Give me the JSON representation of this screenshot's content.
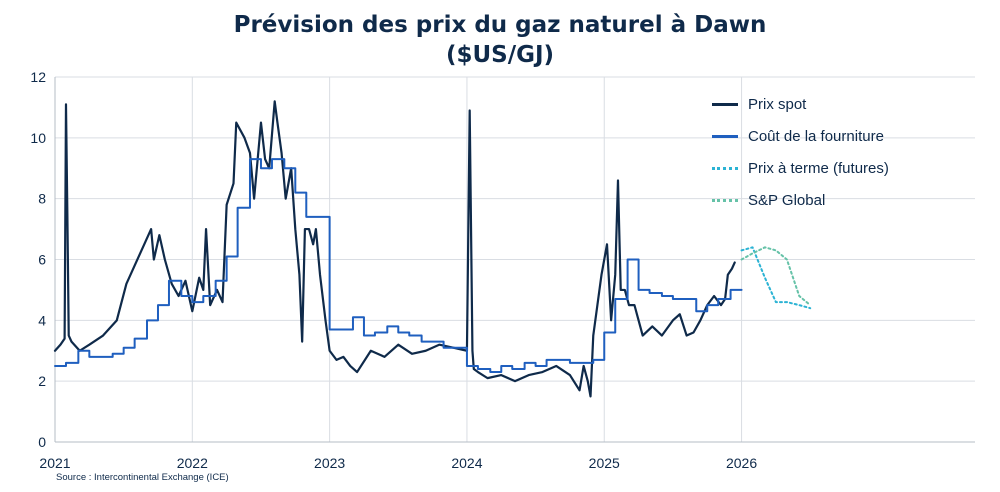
{
  "chart_data": {
    "type": "line",
    "title": "Prévision des prix du gaz naturel à Dawn",
    "subtitle": "($US/GJ)",
    "xlabel": "",
    "ylabel": "",
    "xlim": [
      2021.0,
      2027.7
    ],
    "ylim": [
      0,
      12
    ],
    "yticks": [
      "0",
      "2",
      "4",
      "6",
      "8",
      "10",
      "12"
    ],
    "xticks": [
      "2021",
      "2022",
      "2023",
      "2024",
      "2025",
      "2026"
    ],
    "grid": true,
    "legend_position": "top-right",
    "source": "Source : Intercontinental Exchange (ICE)",
    "series": [
      {
        "name": "Prix spot",
        "color": "#0f2a4a",
        "style": "solid",
        "x": [
          2021.0,
          2021.04,
          2021.07,
          2021.08,
          2021.09,
          2021.1,
          2021.12,
          2021.18,
          2021.25,
          2021.35,
          2021.45,
          2021.52,
          2021.58,
          2021.65,
          2021.7,
          2021.72,
          2021.76,
          2021.8,
          2021.85,
          2021.9,
          2021.95,
          2022.0,
          2022.05,
          2022.08,
          2022.1,
          2022.13,
          2022.18,
          2022.22,
          2022.25,
          2022.3,
          2022.32,
          2022.38,
          2022.42,
          2022.45,
          2022.5,
          2022.53,
          2022.56,
          2022.6,
          2022.62,
          2022.65,
          2022.68,
          2022.72,
          2022.75,
          2022.78,
          2022.8,
          2022.82,
          2022.85,
          2022.88,
          2022.9,
          2022.93,
          2022.97,
          2023.0,
          2023.05,
          2023.1,
          2023.15,
          2023.2,
          2023.3,
          2023.4,
          2023.5,
          2023.6,
          2023.7,
          2023.8,
          2023.9,
          2024.0,
          2024.02,
          2024.04,
          2024.05,
          2024.08,
          2024.15,
          2024.25,
          2024.35,
          2024.45,
          2024.55,
          2024.65,
          2024.75,
          2024.82,
          2024.85,
          2024.88,
          2024.9,
          2024.92,
          2024.95,
          2024.98,
          2025.02,
          2025.05,
          2025.08,
          2025.1,
          2025.12,
          2025.15,
          2025.18,
          2025.22,
          2025.28,
          2025.35,
          2025.42,
          2025.5,
          2025.55,
          2025.6,
          2025.65,
          2025.7,
          2025.75,
          2025.8,
          2025.85,
          2025.88,
          2025.9,
          2025.93,
          2025.95
        ],
        "y": [
          3.0,
          3.2,
          3.4,
          11.1,
          7.5,
          3.5,
          3.3,
          3.0,
          3.2,
          3.5,
          4.0,
          5.2,
          5.8,
          6.5,
          7.0,
          6.0,
          6.8,
          6.0,
          5.2,
          4.8,
          5.3,
          4.3,
          5.4,
          5.0,
          7.0,
          4.5,
          5.0,
          4.6,
          7.8,
          8.5,
          10.5,
          10.0,
          9.5,
          8.0,
          10.5,
          9.3,
          9.0,
          11.2,
          10.5,
          9.5,
          8.0,
          9.0,
          7.0,
          5.5,
          3.3,
          7.0,
          7.0,
          6.5,
          7.0,
          5.5,
          4.0,
          3.0,
          2.7,
          2.8,
          2.5,
          2.3,
          3.0,
          2.8,
          3.2,
          2.9,
          3.0,
          3.2,
          3.1,
          3.0,
          10.9,
          3.0,
          2.4,
          2.3,
          2.1,
          2.2,
          2.0,
          2.2,
          2.3,
          2.5,
          2.2,
          1.7,
          2.5,
          2.0,
          1.5,
          3.5,
          4.5,
          5.5,
          6.5,
          4.0,
          5.5,
          8.6,
          5.0,
          5.0,
          4.5,
          4.5,
          3.5,
          3.8,
          3.5,
          4.0,
          4.2,
          3.5,
          3.6,
          4.0,
          4.5,
          4.8,
          4.5,
          4.7,
          5.5,
          5.7,
          5.9
        ]
      },
      {
        "name": "Coût de la fourniture",
        "color": "#1f5fbf",
        "style": "step",
        "x": [
          2021.0,
          2021.08,
          2021.17,
          2021.25,
          2021.33,
          2021.42,
          2021.5,
          2021.58,
          2021.67,
          2021.75,
          2021.83,
          2021.92,
          2022.0,
          2022.08,
          2022.17,
          2022.25,
          2022.33,
          2022.42,
          2022.5,
          2022.58,
          2022.67,
          2022.75,
          2022.83,
          2022.92,
          2023.0,
          2023.08,
          2023.17,
          2023.25,
          2023.33,
          2023.42,
          2023.5,
          2023.58,
          2023.67,
          2023.75,
          2023.83,
          2023.92,
          2024.0,
          2024.08,
          2024.17,
          2024.25,
          2024.33,
          2024.42,
          2024.5,
          2024.58,
          2024.67,
          2024.75,
          2024.83,
          2024.92,
          2025.0,
          2025.08,
          2025.17,
          2025.25,
          2025.33,
          2025.42,
          2025.5,
          2025.58,
          2025.67,
          2025.75,
          2025.83,
          2025.92,
          2026.0
        ],
        "y": [
          2.5,
          2.6,
          3.0,
          2.8,
          2.8,
          2.9,
          3.1,
          3.4,
          4.0,
          4.5,
          5.3,
          4.8,
          4.6,
          4.8,
          5.3,
          6.1,
          7.7,
          9.3,
          9.0,
          9.3,
          9.0,
          8.2,
          7.4,
          7.4,
          3.7,
          3.7,
          4.1,
          3.5,
          3.6,
          3.8,
          3.6,
          3.5,
          3.3,
          3.3,
          3.1,
          3.1,
          2.5,
          2.4,
          2.3,
          2.5,
          2.4,
          2.6,
          2.5,
          2.7,
          2.7,
          2.6,
          2.6,
          2.7,
          3.6,
          4.7,
          6.0,
          5.0,
          4.9,
          4.8,
          4.7,
          4.7,
          4.3,
          4.5,
          4.7,
          5.0,
          5.0
        ]
      },
      {
        "name": "Prix à terme (futures)",
        "color": "#2bb3d4",
        "style": "dotted",
        "x": [
          2026.0,
          2026.08,
          2026.17,
          2026.25,
          2026.33,
          2026.42,
          2026.5
        ],
        "y": [
          6.3,
          6.4,
          5.4,
          4.6,
          4.6,
          4.5,
          4.4
        ]
      },
      {
        "name": "S&P Global",
        "color": "#66c2a8",
        "style": "dotted",
        "x": [
          2026.0,
          2026.08,
          2026.17,
          2026.25,
          2026.33,
          2026.42,
          2026.5
        ],
        "y": [
          6.0,
          6.2,
          6.4,
          6.3,
          6.0,
          4.8,
          4.5
        ]
      }
    ]
  }
}
